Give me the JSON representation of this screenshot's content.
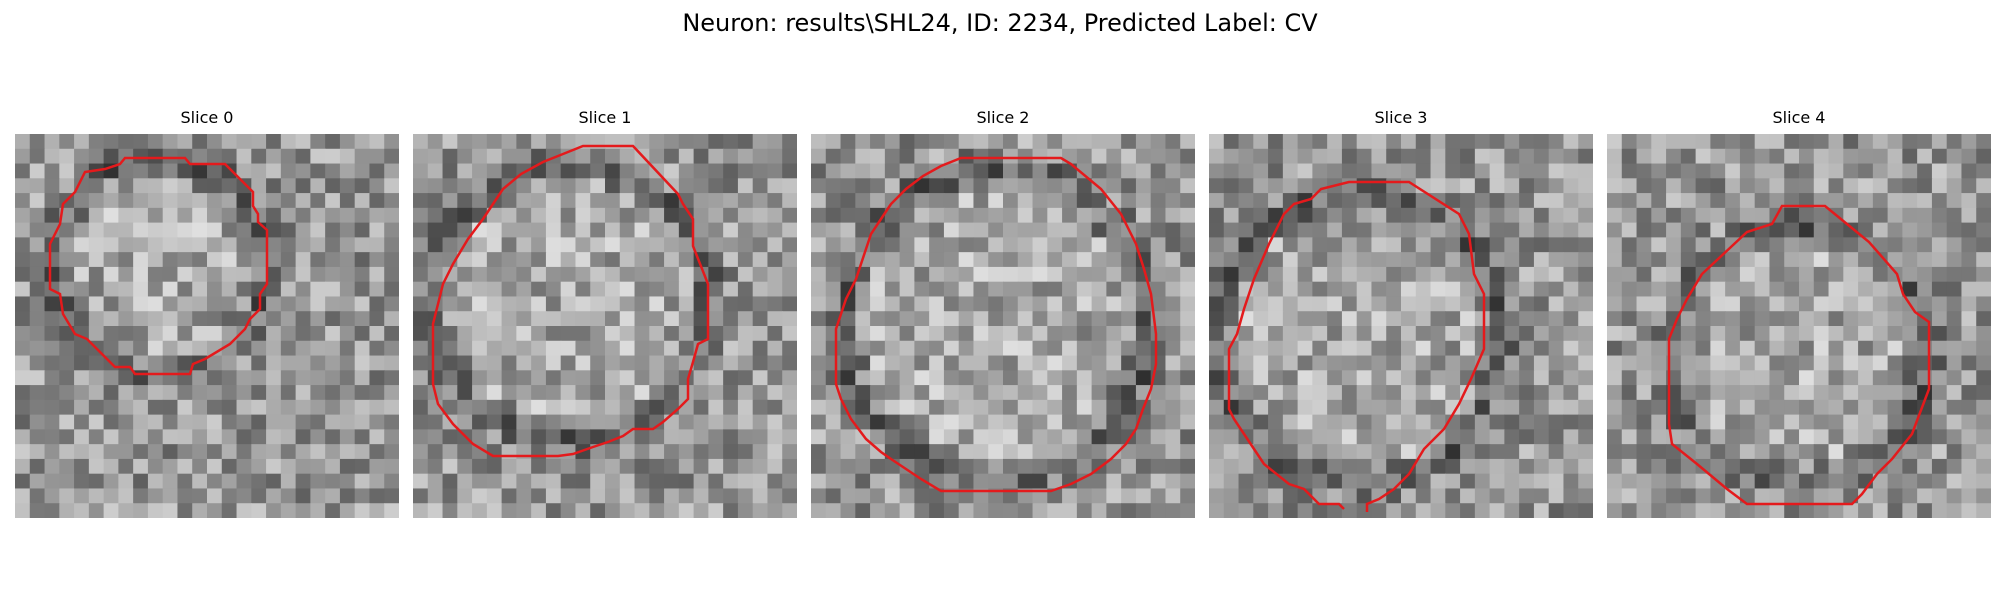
{
  "figure": {
    "title": "Neuron: results\\SHL24, ID: 2234, Predicted Label: CV"
  },
  "panels": [
    {
      "title": "Slice 0"
    },
    {
      "title": "Slice 1"
    },
    {
      "title": "Slice 2"
    },
    {
      "title": "Slice 3"
    },
    {
      "title": "Slice 4"
    }
  ],
  "colors": {
    "contour": "#e41a1c",
    "background": "#ffffff"
  }
}
